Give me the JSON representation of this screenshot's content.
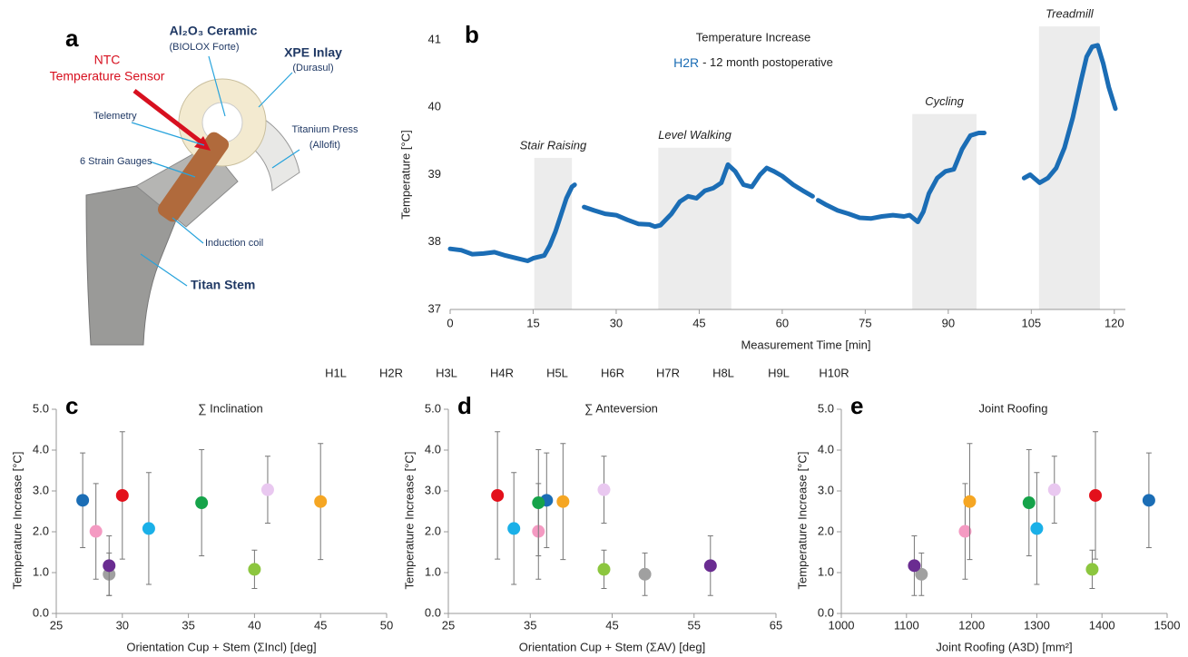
{
  "panel_a": {
    "letter": "a",
    "sensor_label": [
      "NTC",
      "Temperature Sensor"
    ],
    "ceramic": "Al₂O₃ Ceramic",
    "ceramic_sub": "(BIOLOX Forte)",
    "inlay": "XPE Inlay",
    "inlay_sub": "(Durasul)",
    "telemetry": "Telemetry",
    "gauges": "6 Strain Gauges",
    "press": "Titanium Press",
    "press_sub": "(Allofit)",
    "coil": "Induction coil",
    "stem": "Titan Stem"
  },
  "chart_data": [
    {
      "type": "line",
      "panel_label": "b",
      "title": "Temperature Increase",
      "subtitle": "- 12 month postoperative",
      "x_label": "Measurement Time [min]",
      "y_label": "Temperature [°C]",
      "xlim": [
        0,
        122
      ],
      "xticks": [
        0,
        15,
        30,
        45,
        60,
        75,
        90,
        105,
        120
      ],
      "ylim": [
        37,
        41
      ],
      "yticks": [
        37,
        38,
        39,
        40,
        41
      ],
      "x": [
        0,
        2,
        4,
        6,
        8,
        10,
        12,
        14,
        15,
        16,
        17,
        18,
        19,
        20,
        21,
        22,
        22.5,
        23.3,
        24.2,
        26,
        28,
        30,
        32,
        34,
        36,
        37,
        38,
        40,
        41.5,
        43,
        44.5,
        46,
        47.5,
        49,
        50.2,
        51.5,
        53,
        54.5,
        56,
        57.2,
        58.5,
        60,
        62,
        64,
        65.5,
        66,
        66.5,
        68,
        70,
        72,
        74,
        76,
        78,
        80,
        82,
        83,
        84.5,
        85.5,
        86.5,
        88,
        89.5,
        91,
        92.5,
        94,
        95.5,
        96.5,
        100,
        103.7,
        104.8,
        106.5,
        108,
        109.5,
        111,
        112.5,
        114,
        115,
        116,
        117,
        118,
        119,
        120.2
      ],
      "series": [
        {
          "name": "H2R",
          "color": "#1b6db5",
          "values": [
            37.9,
            37.88,
            37.82,
            37.83,
            37.85,
            37.8,
            37.76,
            37.72,
            37.76,
            37.78,
            37.8,
            37.95,
            38.15,
            38.4,
            38.65,
            38.82,
            38.85,
            null,
            38.52,
            38.47,
            38.42,
            38.4,
            38.33,
            38.27,
            38.26,
            38.23,
            38.25,
            38.42,
            38.6,
            38.68,
            38.65,
            38.76,
            38.8,
            38.88,
            39.15,
            39.05,
            38.85,
            38.82,
            39.0,
            39.1,
            39.05,
            38.98,
            38.85,
            38.75,
            38.68,
            null,
            38.62,
            38.55,
            38.47,
            38.42,
            38.36,
            38.35,
            38.38,
            38.4,
            38.38,
            38.4,
            38.3,
            38.45,
            38.72,
            38.95,
            39.05,
            39.08,
            39.38,
            39.58,
            39.62,
            39.62,
            null,
            38.95,
            39.0,
            38.88,
            38.95,
            39.1,
            39.4,
            39.85,
            40.4,
            40.75,
            40.9,
            40.92,
            40.65,
            40.3,
            39.98
          ]
        }
      ],
      "phases": [
        {
          "label": "Stair Raising",
          "start": 15.2,
          "end": 22.0,
          "top": 39.25
        },
        {
          "label": "Level Walking",
          "start": 37.6,
          "end": 50.8,
          "top": 39.4
        },
        {
          "label": "Cycling",
          "start": 83.5,
          "end": 95.1,
          "top": 39.9
        },
        {
          "label": "Treadmill",
          "start": 106.4,
          "end": 117.4,
          "top": 41.2
        }
      ],
      "phase_color": "#ececec"
    },
    {
      "type": "scatter",
      "panel_label": "c",
      "title": "∑ Inclination",
      "x_label": "Orientation Cup + Stem (ΣIncl) [deg]",
      "y_label": "Temperature Increase [°C]",
      "xlim": [
        25,
        50
      ],
      "xticks": [
        25,
        30,
        35,
        40,
        45,
        50
      ],
      "ylim": [
        0,
        5
      ],
      "yticks": [
        {
          "value": 0,
          "label": "0.0"
        },
        {
          "value": 1,
          "label": "1.0"
        },
        {
          "value": 2,
          "label": "2.0"
        },
        {
          "value": 3,
          "label": "3.0"
        },
        {
          "value": 4,
          "label": "4.0"
        },
        {
          "value": 5,
          "label": "5.0"
        }
      ],
      "series": [
        {
          "name": "H1L",
          "color": "#8cc63f",
          "x": [
            40
          ],
          "values": [
            1.08
          ],
          "errors": [
            0.47
          ]
        },
        {
          "name": "H2R",
          "color": "#1b6db5",
          "x": [
            27
          ],
          "values": [
            2.77
          ],
          "errors": [
            1.16
          ]
        },
        {
          "name": "H3L",
          "color": "#f49ac2",
          "x": [
            28
          ],
          "values": [
            2.01
          ],
          "errors": [
            1.17
          ]
        },
        {
          "name": "H4R",
          "color": "#a0a0a0",
          "x": [
            29
          ],
          "values": [
            0.96
          ],
          "errors": [
            0.52
          ]
        },
        {
          "name": "H5L",
          "color": "#f5a623",
          "x": [
            45
          ],
          "values": [
            2.74
          ],
          "errors": [
            1.42
          ]
        },
        {
          "name": "H6R",
          "color": "#6a2c91",
          "x": [
            29
          ],
          "values": [
            1.17
          ],
          "errors": [
            0.73
          ]
        },
        {
          "name": "H7R",
          "color": "#e3101b",
          "x": [
            30
          ],
          "values": [
            2.89
          ],
          "errors": [
            1.56
          ]
        },
        {
          "name": "H8L",
          "color": "#1ab0e8",
          "x": [
            32
          ],
          "values": [
            2.08
          ],
          "errors": [
            1.37
          ]
        },
        {
          "name": "H9L",
          "color": "#e9c8f0",
          "x": [
            41
          ],
          "values": [
            3.03
          ],
          "errors": [
            0.82
          ]
        },
        {
          "name": "H10R",
          "color": "#16a34a",
          "x": [
            36
          ],
          "values": [
            2.71
          ],
          "errors": [
            1.3
          ]
        }
      ]
    },
    {
      "type": "scatter",
      "panel_label": "d",
      "title": "∑ Anteversion",
      "x_label": "Orientation Cup + Stem (ΣAV) [deg]",
      "y_label": "Temperature Increase [°C]",
      "xlim": [
        25,
        65
      ],
      "xticks": [
        25,
        35,
        45,
        55,
        65
      ],
      "ylim": [
        0,
        5
      ],
      "yticks": [
        {
          "value": 0,
          "label": "0.0"
        },
        {
          "value": 1,
          "label": "1.0"
        },
        {
          "value": 2,
          "label": "2.0"
        },
        {
          "value": 3,
          "label": "3.0"
        },
        {
          "value": 4,
          "label": "4.0"
        },
        {
          "value": 5,
          "label": "5.0"
        }
      ],
      "series": [
        {
          "color": "#8cc63f",
          "x": [
            44
          ],
          "values": [
            1.08
          ],
          "errors": [
            0.47
          ]
        },
        {
          "color": "#1b6db5",
          "x": [
            37
          ],
          "values": [
            2.77
          ],
          "errors": [
            1.16
          ]
        },
        {
          "color": "#f49ac2",
          "x": [
            36
          ],
          "values": [
            2.01
          ],
          "errors": [
            1.17
          ]
        },
        {
          "color": "#a0a0a0",
          "x": [
            49
          ],
          "values": [
            0.96
          ],
          "errors": [
            0.52
          ]
        },
        {
          "color": "#f5a623",
          "x": [
            39
          ],
          "values": [
            2.74
          ],
          "errors": [
            1.42
          ]
        },
        {
          "color": "#6a2c91",
          "x": [
            57
          ],
          "values": [
            1.17
          ],
          "errors": [
            0.73
          ]
        },
        {
          "color": "#e3101b",
          "x": [
            31
          ],
          "values": [
            2.89
          ],
          "errors": [
            1.56
          ]
        },
        {
          "color": "#1ab0e8",
          "x": [
            33
          ],
          "values": [
            2.08
          ],
          "errors": [
            1.37
          ]
        },
        {
          "color": "#e9c8f0",
          "x": [
            44
          ],
          "values": [
            3.03
          ],
          "errors": [
            0.82
          ]
        },
        {
          "color": "#16a34a",
          "x": [
            36
          ],
          "values": [
            2.71
          ],
          "errors": [
            1.3
          ]
        }
      ]
    },
    {
      "type": "scatter",
      "panel_label": "e",
      "title": "Joint Roofing",
      "x_label": "Joint Roofing (A3D) [mm²]",
      "y_label": "Temperature Increase [°C]",
      "xlim": [
        1000,
        1500
      ],
      "xticks": [
        1000,
        1100,
        1200,
        1300,
        1400,
        1500
      ],
      "ylim": [
        0,
        5
      ],
      "yticks": [
        {
          "value": 0,
          "label": "0.0"
        },
        {
          "value": 1,
          "label": "1.0"
        },
        {
          "value": 2,
          "label": "2.0"
        },
        {
          "value": 3,
          "label": "3.0"
        },
        {
          "value": 4,
          "label": "4.0"
        },
        {
          "value": 5,
          "label": "5.0"
        }
      ],
      "series": [
        {
          "color": "#8cc63f",
          "x": [
            1385
          ],
          "values": [
            1.08
          ],
          "errors": [
            0.47
          ]
        },
        {
          "color": "#1b6db5",
          "x": [
            1472
          ],
          "values": [
            2.77
          ],
          "errors": [
            1.16
          ]
        },
        {
          "color": "#f49ac2",
          "x": [
            1190
          ],
          "values": [
            2.01
          ],
          "errors": [
            1.17
          ]
        },
        {
          "color": "#a0a0a0",
          "x": [
            1123
          ],
          "values": [
            0.96
          ],
          "errors": [
            0.52
          ]
        },
        {
          "color": "#f5a623",
          "x": [
            1197
          ],
          "values": [
            2.74
          ],
          "errors": [
            1.42
          ]
        },
        {
          "color": "#6a2c91",
          "x": [
            1112
          ],
          "values": [
            1.17
          ],
          "errors": [
            0.73
          ]
        },
        {
          "color": "#e3101b",
          "x": [
            1390
          ],
          "values": [
            2.89
          ],
          "errors": [
            1.56
          ]
        },
        {
          "color": "#1ab0e8",
          "x": [
            1300
          ],
          "values": [
            2.08
          ],
          "errors": [
            1.37
          ]
        },
        {
          "color": "#e9c8f0",
          "x": [
            1327
          ],
          "values": [
            3.03
          ],
          "errors": [
            0.82
          ]
        },
        {
          "color": "#16a34a",
          "x": [
            1288
          ],
          "values": [
            2.71
          ],
          "errors": [
            1.3
          ]
        }
      ]
    }
  ]
}
